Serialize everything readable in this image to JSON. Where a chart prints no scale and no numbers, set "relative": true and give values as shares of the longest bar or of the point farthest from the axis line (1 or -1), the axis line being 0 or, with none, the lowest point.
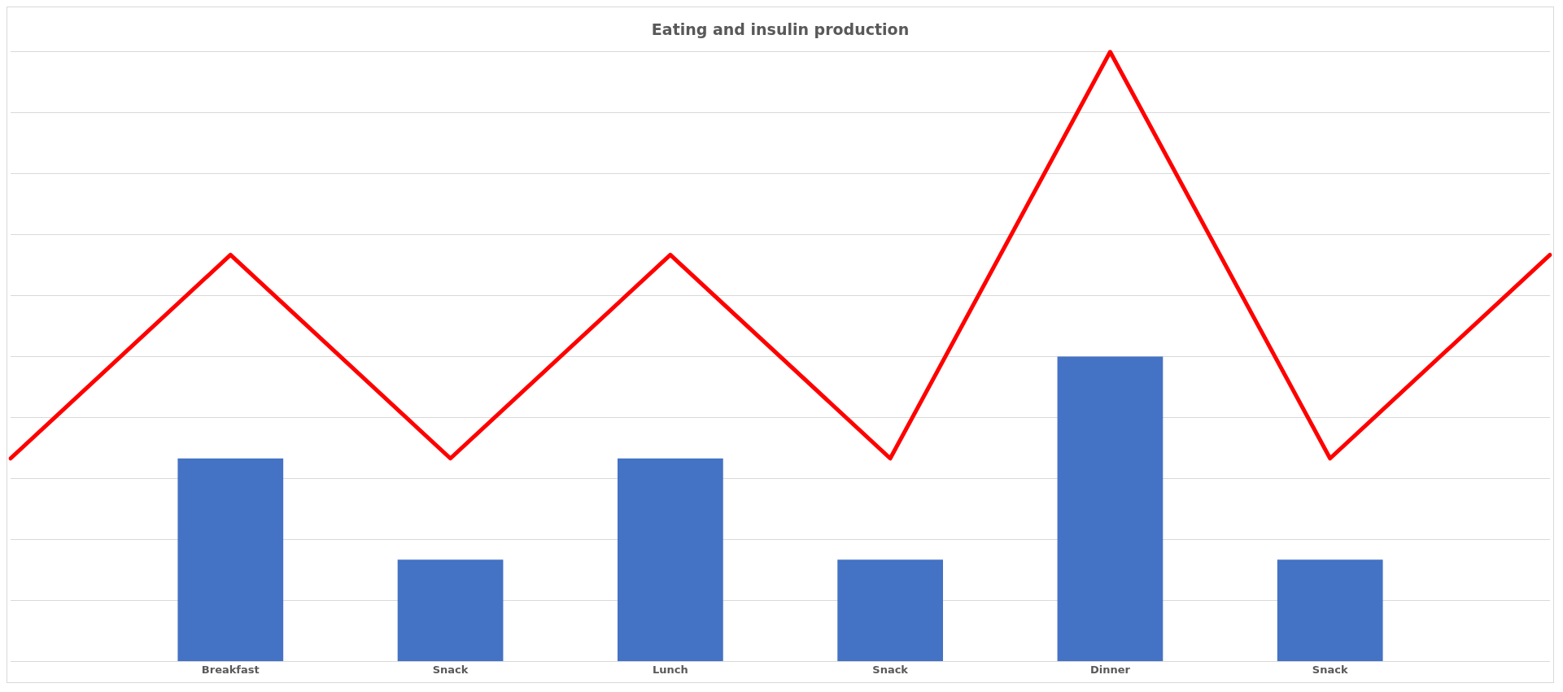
{
  "chart_data": {
    "type": "bar",
    "title": "Eating and insulin production",
    "relative": true,
    "grid": "y",
    "categories": [
      null,
      "Breakfast",
      "Snack",
      "Lunch",
      "Snack",
      "Dinner",
      "Snack",
      null
    ],
    "series": [
      {
        "color": "#4472c4",
        "values": [
          null,
          0.333,
          0.167,
          0.333,
          0.167,
          0.5,
          0.167,
          null
        ]
      },
      {
        "type": "line",
        "color": "#ff0000",
        "values": [
          0.333,
          0.667,
          0.333,
          0.667,
          0.333,
          1,
          0.333,
          0.667
        ]
      }
    ]
  }
}
